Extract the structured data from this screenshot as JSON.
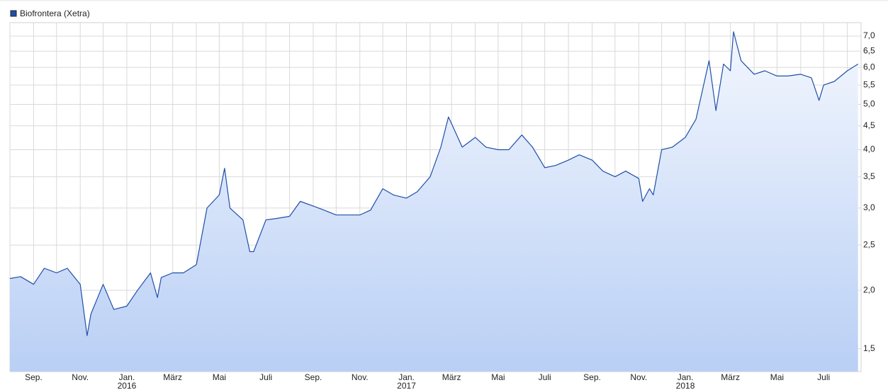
{
  "chart_data": {
    "type": "line",
    "scale": "log",
    "grid": true,
    "legend": "top-left",
    "series": [
      {
        "name": "Biofrontera (Xetra)",
        "color": "#1f4fa8",
        "x": [
          "2015-08-01",
          "2015-08-15",
          "2015-09-01",
          "2015-09-15",
          "2015-10-01",
          "2015-10-15",
          "2015-11-01",
          "2015-11-10",
          "2015-11-15",
          "2015-12-01",
          "2015-12-15",
          "2016-01-01",
          "2016-01-15",
          "2016-02-01",
          "2016-02-10",
          "2016-02-15",
          "2016-03-01",
          "2016-03-15",
          "2016-04-01",
          "2016-04-15",
          "2016-05-01",
          "2016-05-08",
          "2016-05-15",
          "2016-06-01",
          "2016-06-10",
          "2016-06-15",
          "2016-07-01",
          "2016-07-15",
          "2016-08-01",
          "2016-08-15",
          "2016-09-01",
          "2016-09-15",
          "2016-10-01",
          "2016-10-15",
          "2016-11-01",
          "2016-11-15",
          "2016-12-01",
          "2016-12-15",
          "2017-01-01",
          "2017-01-15",
          "2017-02-01",
          "2017-02-15",
          "2017-02-25",
          "2017-03-01",
          "2017-03-15",
          "2017-04-01",
          "2017-04-15",
          "2017-05-01",
          "2017-05-15",
          "2017-06-01",
          "2017-06-15",
          "2017-07-01",
          "2017-07-15",
          "2017-08-01",
          "2017-08-15",
          "2017-09-01",
          "2017-09-15",
          "2017-10-01",
          "2017-10-15",
          "2017-11-01",
          "2017-11-06",
          "2017-11-15",
          "2017-11-20",
          "2017-12-01",
          "2017-12-15",
          "2018-01-01",
          "2018-01-15",
          "2018-02-01",
          "2018-02-10",
          "2018-02-20",
          "2018-03-01",
          "2018-03-05",
          "2018-03-15",
          "2018-04-01",
          "2018-04-15",
          "2018-05-01",
          "2018-05-15",
          "2018-06-01",
          "2018-06-15",
          "2018-06-25",
          "2018-07-01",
          "2018-07-15",
          "2018-08-01",
          "2018-08-15"
        ],
        "values": [
          2.12,
          2.14,
          2.06,
          2.23,
          2.18,
          2.23,
          2.06,
          1.6,
          1.78,
          2.06,
          1.82,
          1.85,
          2.0,
          2.18,
          1.93,
          2.13,
          2.18,
          2.18,
          2.27,
          3.0,
          3.2,
          3.65,
          3.0,
          2.83,
          2.42,
          2.42,
          2.83,
          2.85,
          2.88,
          3.1,
          3.03,
          2.97,
          2.9,
          2.9,
          2.9,
          2.97,
          3.3,
          3.2,
          3.15,
          3.25,
          3.5,
          4.05,
          4.7,
          4.55,
          4.05,
          4.25,
          4.05,
          4.0,
          4.0,
          4.3,
          4.05,
          3.66,
          3.7,
          3.8,
          3.9,
          3.8,
          3.6,
          3.5,
          3.6,
          3.47,
          3.1,
          3.3,
          3.2,
          4.0,
          4.05,
          4.25,
          4.65,
          6.2,
          4.85,
          6.1,
          5.9,
          7.15,
          6.2,
          5.8,
          5.9,
          5.75,
          5.75,
          5.8,
          5.7,
          5.1,
          5.5,
          5.6,
          5.9,
          6.1
        ]
      }
    ],
    "xlim": [
      "2015-08-01",
      "2018-08-19"
    ],
    "xticks": [
      {
        "value": "2015-09-01",
        "label": "Sep."
      },
      {
        "value": "2015-11-01",
        "label": "Nov."
      },
      {
        "value": "2016-01-01",
        "label": "Jan."
      },
      {
        "value": "2016-03-01",
        "label": "März"
      },
      {
        "value": "2016-05-01",
        "label": "Mai"
      },
      {
        "value": "2016-07-01",
        "label": "Juli"
      },
      {
        "value": "2016-09-01",
        "label": "Sep."
      },
      {
        "value": "2016-11-01",
        "label": "Nov."
      },
      {
        "value": "2017-01-01",
        "label": "Jan."
      },
      {
        "value": "2017-03-01",
        "label": "März"
      },
      {
        "value": "2017-05-01",
        "label": "Mai"
      },
      {
        "value": "2017-07-01",
        "label": "Juli"
      },
      {
        "value": "2017-09-01",
        "label": "Sep."
      },
      {
        "value": "2017-11-01",
        "label": "Nov."
      },
      {
        "value": "2018-01-01",
        "label": "Jan."
      },
      {
        "value": "2018-03-01",
        "label": "März"
      },
      {
        "value": "2018-05-01",
        "label": "Mai"
      },
      {
        "value": "2018-07-01",
        "label": "Juli"
      }
    ],
    "xminor": [
      "2015-08-01",
      "2015-10-01",
      "2015-12-01",
      "2016-02-01",
      "2016-04-01",
      "2016-06-01",
      "2016-08-01",
      "2016-10-01",
      "2016-12-01",
      "2017-02-01",
      "2017-04-01",
      "2017-06-01",
      "2017-08-01",
      "2017-10-01",
      "2017-12-01",
      "2018-02-01",
      "2018-04-01",
      "2018-06-01",
      "2018-08-01"
    ],
    "xyears": [
      {
        "value": "2016-01-01",
        "label": "2016"
      },
      {
        "value": "2017-01-01",
        "label": "2017"
      },
      {
        "value": "2018-01-01",
        "label": "2018"
      }
    ],
    "ylim": [
      1.34,
      7.48
    ],
    "yticks": [
      {
        "value": 1.5,
        "label": "1,5"
      },
      {
        "value": 2,
        "label": "2,0"
      },
      {
        "value": 2.5,
        "label": "2,5"
      },
      {
        "value": 3,
        "label": "3,0"
      },
      {
        "value": 3.5,
        "label": "3,5"
      },
      {
        "value": 4,
        "label": "4,0"
      },
      {
        "value": 4.5,
        "label": "4,5"
      },
      {
        "value": 5,
        "label": "5,0"
      },
      {
        "value": 5.5,
        "label": "5,5"
      },
      {
        "value": 6,
        "label": "6,0"
      },
      {
        "value": 6.5,
        "label": "6,5"
      },
      {
        "value": 7,
        "label": "7,0"
      }
    ]
  }
}
